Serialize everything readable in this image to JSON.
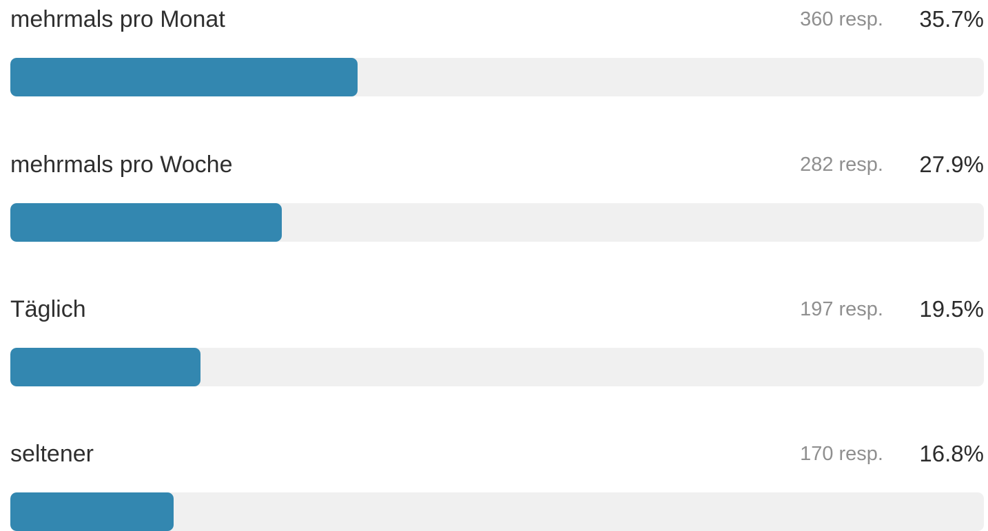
{
  "chart_data": {
    "type": "bar",
    "orientation": "horizontal",
    "categories": [
      "mehrmals pro Monat",
      "mehrmals pro Woche",
      "Täglich",
      "seltener"
    ],
    "values": [
      35.7,
      27.9,
      19.5,
      16.8
    ],
    "counts": [
      360,
      282,
      197,
      170
    ],
    "rows": [
      {
        "label": "mehrmals pro Monat",
        "count_text": "360 resp.",
        "percent_text": "35.7%",
        "percent": 35.7
      },
      {
        "label": "mehrmals pro Woche",
        "count_text": "282 resp.",
        "percent_text": "27.9%",
        "percent": 27.9
      },
      {
        "label": "Täglich",
        "count_text": "197 resp.",
        "percent_text": "19.5%",
        "percent": 19.5
      },
      {
        "label": "seltener",
        "count_text": "170 resp.",
        "percent_text": "16.8%",
        "percent": 16.8
      }
    ],
    "xlim": [
      0,
      100
    ],
    "grid": false,
    "bar_color": "#3387b0",
    "track_color": "#f0f0f0"
  }
}
